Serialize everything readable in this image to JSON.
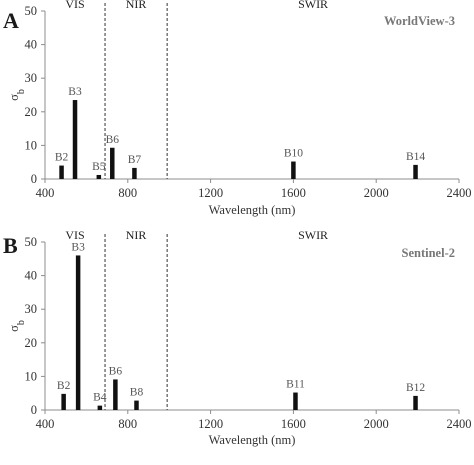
{
  "chart_data": [
    {
      "panel": "A",
      "type": "bar",
      "title": "WorldView-3",
      "xlabel": "Wavelength (nm)",
      "ylabel": "σ",
      "ylabel_sub": "b",
      "xlim": [
        400,
        2400
      ],
      "ylim": [
        0,
        50
      ],
      "xticks": [
        400,
        800,
        1200,
        1600,
        2000,
        2400
      ],
      "yticks": [
        0,
        10,
        20,
        30,
        40,
        50
      ],
      "regions": [
        {
          "label": "VIS",
          "x_end": 690
        },
        {
          "label": "NIR",
          "x_end": 990
        },
        {
          "label": "SWIR",
          "x_end": 2400
        }
      ],
      "bars": [
        {
          "label": "B2",
          "x": 480,
          "value": 4
        },
        {
          "label": "B3",
          "x": 545,
          "value": 23.5
        },
        {
          "label": "B5",
          "x": 660,
          "value": 1.2
        },
        {
          "label": "B6",
          "x": 725,
          "value": 9.3
        },
        {
          "label": "B7",
          "x": 832,
          "value": 3.3
        },
        {
          "label": "B10",
          "x": 1600,
          "value": 5.2
        },
        {
          "label": "B14",
          "x": 2190,
          "value": 4.2
        }
      ]
    },
    {
      "panel": "B",
      "type": "bar",
      "title": "Sentinel-2",
      "xlabel": "Wavelength (nm)",
      "ylabel": "σ",
      "ylabel_sub": "b",
      "xlim": [
        400,
        2400
      ],
      "ylim": [
        0,
        50
      ],
      "xticks": [
        400,
        800,
        1200,
        1600,
        2000,
        2400
      ],
      "yticks": [
        0,
        10,
        20,
        30,
        40,
        50
      ],
      "regions": [
        {
          "label": "VIS",
          "x_end": 690
        },
        {
          "label": "NIR",
          "x_end": 990
        },
        {
          "label": "SWIR",
          "x_end": 2400
        }
      ],
      "bars": [
        {
          "label": "B2",
          "x": 490,
          "value": 4.8
        },
        {
          "label": "B3",
          "x": 560,
          "value": 46
        },
        {
          "label": "B4",
          "x": 665,
          "value": 1.3
        },
        {
          "label": "B6",
          "x": 740,
          "value": 9.1
        },
        {
          "label": "B8",
          "x": 842,
          "value": 2.8
        },
        {
          "label": "B11",
          "x": 1610,
          "value": 5.2
        },
        {
          "label": "B12",
          "x": 2190,
          "value": 4.2
        }
      ]
    }
  ]
}
